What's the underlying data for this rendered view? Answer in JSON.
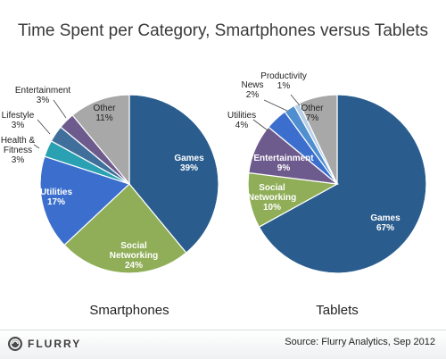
{
  "title": "Time Spent per Category, Smartphones versus Tablets",
  "footer": {
    "logo_text": "FLURRY",
    "source": "Source: Flurry Analytics, Sep 2012"
  },
  "colors": {
    "games": "#2a5d8e",
    "social": "#8fae57",
    "utilities": "#3c6fcd",
    "health": "#2aa1b2",
    "lifestyle": "#3f6f9a",
    "entertainment": "#6e5b8e",
    "other": "#a8a8a8",
    "news": "#4f8fd0",
    "productivity": "#b7d0e8"
  },
  "chart_data": [
    {
      "type": "pie",
      "title": "Smartphones",
      "slices": [
        {
          "label": "Games",
          "value": 39,
          "value_label": "39%",
          "color_key": "games"
        },
        {
          "label": "Social Networking",
          "value": 24,
          "value_label": "24%",
          "color_key": "social"
        },
        {
          "label": "Utilities",
          "value": 17,
          "value_label": "17%",
          "color_key": "utilities"
        },
        {
          "label": "Health & Fitness",
          "value": 3,
          "value_label": "3%",
          "color_key": "health"
        },
        {
          "label": "Lifestyle",
          "value": 3,
          "value_label": "3%",
          "color_key": "lifestyle"
        },
        {
          "label": "Entertainment",
          "value": 3,
          "value_label": "3%",
          "color_key": "entertainment"
        },
        {
          "label": "Other",
          "value": 11,
          "value_label": "11%",
          "color_key": "other"
        }
      ]
    },
    {
      "type": "pie",
      "title": "Tablets",
      "slices": [
        {
          "label": "Games",
          "value": 67,
          "value_label": "67%",
          "color_key": "games"
        },
        {
          "label": "Social Networking",
          "value": 10,
          "value_label": "10%",
          "color_key": "social"
        },
        {
          "label": "Entertainment",
          "value": 9,
          "value_label": "9%",
          "color_key": "entertainment"
        },
        {
          "label": "Utilities",
          "value": 4,
          "value_label": "4%",
          "color_key": "utilities"
        },
        {
          "label": "News",
          "value": 2,
          "value_label": "2%",
          "color_key": "news"
        },
        {
          "label": "Productivity",
          "value": 1,
          "value_label": "1%",
          "color_key": "productivity"
        },
        {
          "label": "Other",
          "value": 7,
          "value_label": "7%",
          "color_key": "other"
        }
      ]
    }
  ]
}
